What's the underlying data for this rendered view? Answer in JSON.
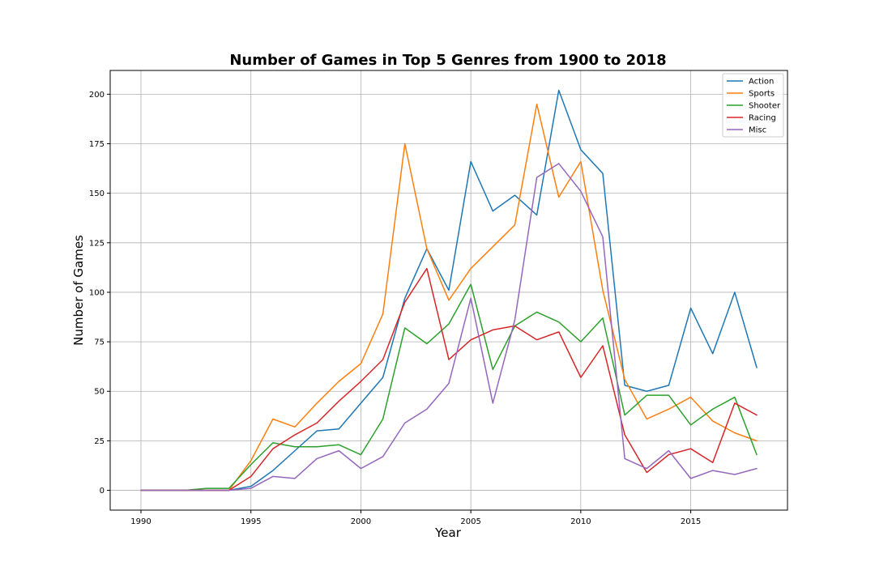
{
  "chart_data": {
    "type": "line",
    "title": "Number of Games in Top 5 Genres from 1900 to 2018",
    "xlabel": "Year",
    "ylabel": "Number of Games",
    "xlim": [
      1988.6,
      2019.4
    ],
    "ylim": [
      -10,
      212
    ],
    "xticks": [
      1990,
      1995,
      2000,
      2005,
      2010,
      2015
    ],
    "yticks": [
      0,
      25,
      50,
      75,
      100,
      125,
      150,
      175,
      200
    ],
    "grid": true,
    "legend_position": "top-right",
    "x": [
      1990,
      1991,
      1992,
      1993,
      1994,
      1995,
      1996,
      1997,
      1998,
      1999,
      2000,
      2001,
      2002,
      2003,
      2004,
      2005,
      2006,
      2007,
      2008,
      2009,
      2010,
      2011,
      2012,
      2013,
      2014,
      2015,
      2016,
      2017,
      2018
    ],
    "series": [
      {
        "name": "Action",
        "color": "#1f77b4",
        "values": [
          0,
          0,
          0,
          0,
          0,
          2,
          10,
          20,
          30,
          31,
          44,
          57,
          97,
          122,
          101,
          166,
          141,
          149,
          139,
          202,
          172,
          160,
          53,
          50,
          53,
          92,
          69,
          100,
          62
        ]
      },
      {
        "name": "Sports",
        "color": "#ff7f0e",
        "values": [
          0,
          0,
          0,
          0,
          0,
          15,
          36,
          32,
          44,
          55,
          64,
          89,
          175,
          122,
          96,
          112,
          123,
          134,
          195,
          148,
          166,
          101,
          56,
          36,
          41,
          47,
          35,
          29,
          25
        ]
      },
      {
        "name": "Shooter",
        "color": "#2ca02c",
        "values": [
          0,
          0,
          0,
          1,
          1,
          13,
          24,
          22,
          22,
          23,
          18,
          36,
          82,
          74,
          84,
          104,
          61,
          83,
          90,
          85,
          75,
          87,
          38,
          48,
          48,
          33,
          41,
          47,
          18
        ]
      },
      {
        "name": "Racing",
        "color": "#d62728",
        "values": [
          0,
          0,
          0,
          0,
          0,
          7,
          21,
          28,
          34,
          45,
          55,
          66,
          95,
          112,
          66,
          76,
          81,
          83,
          76,
          80,
          57,
          73,
          28,
          9,
          18,
          21,
          14,
          44,
          38
        ]
      },
      {
        "name": "Misc",
        "color": "#9467bd",
        "values": [
          0,
          0,
          0,
          0,
          0,
          1,
          7,
          6,
          16,
          20,
          11,
          17,
          34,
          41,
          54,
          97,
          44,
          86,
          158,
          165,
          151,
          128,
          16,
          11,
          20,
          6,
          10,
          8,
          11
        ]
      }
    ]
  }
}
